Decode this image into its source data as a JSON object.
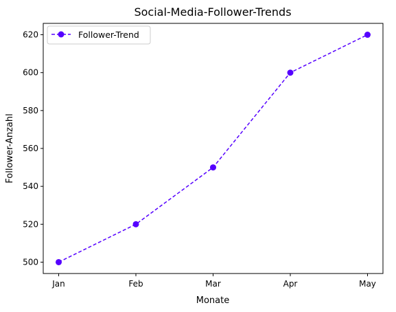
{
  "chart_data": {
    "type": "line",
    "title": "Social-Media-Follower-Trends",
    "xlabel": "Monate",
    "ylabel": "Follower-Anzahl",
    "categories": [
      "Jan",
      "Feb",
      "Mar",
      "Apr",
      "May"
    ],
    "series": [
      {
        "name": "Follower-Trend",
        "values": [
          500,
          520,
          550,
          600,
          620
        ],
        "color": "#5500ff",
        "line_style": "dashed",
        "marker": "circle"
      }
    ],
    "yticks": [
      500,
      520,
      540,
      560,
      580,
      600,
      620
    ],
    "ylim": [
      494,
      626
    ],
    "grid": false,
    "legend": "top-left"
  }
}
